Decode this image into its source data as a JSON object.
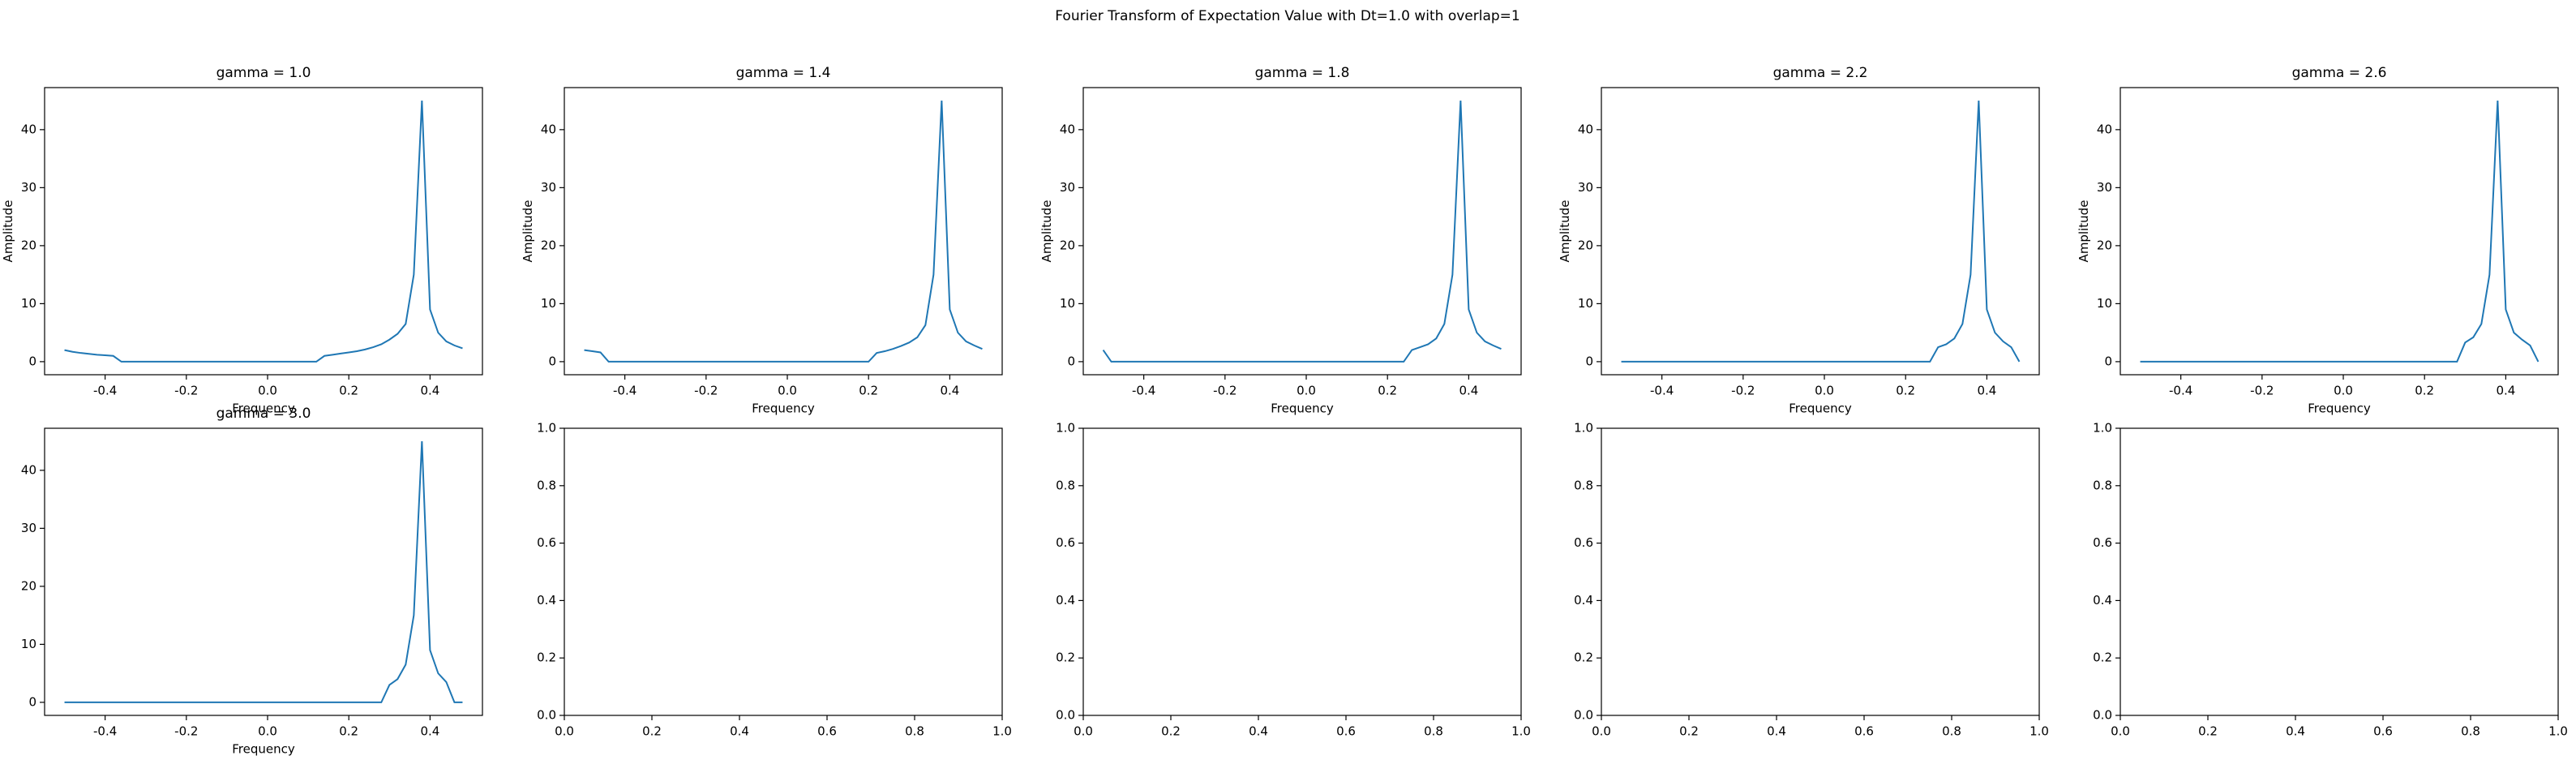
{
  "title": "Fourier Transform of Expectation Value with Dt=1.0 with overlap=1",
  "chart_data": [
    {
      "type": "line",
      "title": "gamma = 1.0",
      "xlabel": "Frequency",
      "ylabel": "Amplitude",
      "color": "#1f77b4",
      "x": [
        -0.5,
        -0.48,
        -0.46,
        -0.44,
        -0.42,
        -0.4,
        -0.38,
        -0.36,
        -0.34,
        -0.32,
        -0.3,
        -0.28,
        -0.26,
        -0.24,
        -0.22,
        -0.2,
        -0.18,
        -0.16,
        -0.14,
        -0.12,
        -0.1,
        -0.08,
        -0.06,
        -0.04,
        -0.02,
        0,
        0.02,
        0.04,
        0.06,
        0.08,
        0.1,
        0.12,
        0.14,
        0.16,
        0.18,
        0.2,
        0.22,
        0.24,
        0.26,
        0.28,
        0.3,
        0.32,
        0.34,
        0.36,
        0.38,
        0.4,
        0.42,
        0.44,
        0.46,
        0.48
      ],
      "values": [
        2.0,
        1.7,
        1.5,
        1.35,
        1.2,
        1.1,
        1.0,
        0,
        0,
        0,
        0,
        0,
        0,
        0,
        0,
        0,
        0,
        0,
        0,
        0,
        0,
        0,
        0,
        0,
        0,
        0,
        0,
        0,
        0,
        0,
        0,
        0,
        1.0,
        1.2,
        1.4,
        1.6,
        1.8,
        2.1,
        2.5,
        3.0,
        3.8,
        4.8,
        6.5,
        15,
        45,
        9,
        5,
        3.5,
        2.8,
        2.3
      ],
      "xlim": [
        -0.549,
        0.529
      ],
      "ylim": [
        -2.25,
        47.25
      ],
      "xticks": [
        -0.4,
        -0.2,
        {
          "value": 0,
          "label": "0.0"
        },
        0.2,
        0.4
      ],
      "yticks": [
        0,
        10,
        20,
        30,
        40
      ]
    },
    {
      "type": "line",
      "title": "gamma = 1.4",
      "xlabel": "Frequency",
      "ylabel": "Amplitude",
      "color": "#1f77b4",
      "x": [
        -0.5,
        -0.48,
        -0.46,
        -0.44,
        -0.42,
        -0.4,
        -0.38,
        -0.36,
        -0.34,
        -0.32,
        -0.3,
        -0.28,
        -0.26,
        -0.24,
        -0.22,
        -0.2,
        -0.18,
        -0.16,
        -0.14,
        -0.12,
        -0.1,
        -0.08,
        -0.06,
        -0.04,
        -0.02,
        0,
        0.02,
        0.04,
        0.06,
        0.08,
        0.1,
        0.12,
        0.14,
        0.16,
        0.18,
        0.2,
        0.22,
        0.24,
        0.26,
        0.28,
        0.3,
        0.32,
        0.34,
        0.36,
        0.38,
        0.4,
        0.42,
        0.44,
        0.46,
        0.48
      ],
      "values": [
        2.0,
        1.8,
        1.6,
        0,
        0,
        0,
        0,
        0,
        0,
        0,
        0,
        0,
        0,
        0,
        0,
        0,
        0,
        0,
        0,
        0,
        0,
        0,
        0,
        0,
        0,
        0,
        0,
        0,
        0,
        0,
        0,
        0,
        0,
        0,
        0,
        0,
        1.5,
        1.8,
        2.2,
        2.7,
        3.3,
        4.2,
        6.3,
        15,
        45,
        9,
        5,
        3.5,
        2.8,
        2.2
      ],
      "xlim": [
        -0.549,
        0.529
      ],
      "ylim": [
        -2.25,
        47.25
      ],
      "xticks": [
        -0.4,
        -0.2,
        {
          "value": 0,
          "label": "0.0"
        },
        0.2,
        0.4
      ],
      "yticks": [
        0,
        10,
        20,
        30,
        40
      ]
    },
    {
      "type": "line",
      "title": "gamma = 1.8",
      "xlabel": "Frequency",
      "ylabel": "Amplitude",
      "color": "#1f77b4",
      "x": [
        -0.5,
        -0.48,
        -0.46,
        -0.44,
        -0.42,
        -0.4,
        -0.38,
        -0.36,
        -0.34,
        -0.32,
        -0.3,
        -0.28,
        -0.26,
        -0.24,
        -0.22,
        -0.2,
        -0.18,
        -0.16,
        -0.14,
        -0.12,
        -0.1,
        -0.08,
        -0.06,
        -0.04,
        -0.02,
        0,
        0.02,
        0.04,
        0.06,
        0.08,
        0.1,
        0.12,
        0.14,
        0.16,
        0.18,
        0.2,
        0.22,
        0.24,
        0.26,
        0.28,
        0.3,
        0.32,
        0.34,
        0.36,
        0.38,
        0.4,
        0.42,
        0.44,
        0.46,
        0.48
      ],
      "values": [
        2.0,
        0,
        0,
        0,
        0,
        0,
        0,
        0,
        0,
        0,
        0,
        0,
        0,
        0,
        0,
        0,
        0,
        0,
        0,
        0,
        0,
        0,
        0,
        0,
        0,
        0,
        0,
        0,
        0,
        0,
        0,
        0,
        0,
        0,
        0,
        0,
        0,
        0,
        2.0,
        2.5,
        3.0,
        4.0,
        6.5,
        15,
        45,
        9,
        5,
        3.5,
        2.8,
        2.2
      ],
      "xlim": [
        -0.549,
        0.529
      ],
      "ylim": [
        -2.25,
        47.25
      ],
      "xticks": [
        -0.4,
        -0.2,
        {
          "value": 0,
          "label": "0.0"
        },
        0.2,
        0.4
      ],
      "yticks": [
        0,
        10,
        20,
        30,
        40
      ]
    },
    {
      "type": "line",
      "title": "gamma = 2.2",
      "xlabel": "Frequency",
      "ylabel": "Amplitude",
      "color": "#1f77b4",
      "x": [
        -0.5,
        -0.48,
        -0.46,
        -0.44,
        -0.42,
        -0.4,
        -0.38,
        -0.36,
        -0.34,
        -0.32,
        -0.3,
        -0.28,
        -0.26,
        -0.24,
        -0.22,
        -0.2,
        -0.18,
        -0.16,
        -0.14,
        -0.12,
        -0.1,
        -0.08,
        -0.06,
        -0.04,
        -0.02,
        0,
        0.02,
        0.04,
        0.06,
        0.08,
        0.1,
        0.12,
        0.14,
        0.16,
        0.18,
        0.2,
        0.22,
        0.24,
        0.26,
        0.28,
        0.3,
        0.32,
        0.34,
        0.36,
        0.38,
        0.4,
        0.42,
        0.44,
        0.46,
        0.48
      ],
      "values": [
        0,
        0,
        0,
        0,
        0,
        0,
        0,
        0,
        0,
        0,
        0,
        0,
        0,
        0,
        0,
        0,
        0,
        0,
        0,
        0,
        0,
        0,
        0,
        0,
        0,
        0,
        0,
        0,
        0,
        0,
        0,
        0,
        0,
        0,
        0,
        0,
        0,
        0,
        0,
        2.5,
        3.0,
        4.0,
        6.5,
        15,
        45,
        9,
        5,
        3.5,
        2.5,
        0
      ],
      "xlim": [
        -0.549,
        0.529
      ],
      "ylim": [
        -2.25,
        47.25
      ],
      "xticks": [
        -0.4,
        -0.2,
        {
          "value": 0,
          "label": "0.0"
        },
        0.2,
        0.4
      ],
      "yticks": [
        0,
        10,
        20,
        30,
        40
      ]
    },
    {
      "type": "line",
      "title": "gamma = 2.6",
      "xlabel": "Frequency",
      "ylabel": "Amplitude",
      "color": "#1f77b4",
      "x": [
        -0.5,
        -0.48,
        -0.46,
        -0.44,
        -0.42,
        -0.4,
        -0.38,
        -0.36,
        -0.34,
        -0.32,
        -0.3,
        -0.28,
        -0.26,
        -0.24,
        -0.22,
        -0.2,
        -0.18,
        -0.16,
        -0.14,
        -0.12,
        -0.1,
        -0.08,
        -0.06,
        -0.04,
        -0.02,
        0,
        0.02,
        0.04,
        0.06,
        0.08,
        0.1,
        0.12,
        0.14,
        0.16,
        0.18,
        0.2,
        0.22,
        0.24,
        0.26,
        0.28,
        0.3,
        0.32,
        0.34,
        0.36,
        0.38,
        0.4,
        0.42,
        0.44,
        0.46,
        0.48
      ],
      "values": [
        0,
        0,
        0,
        0,
        0,
        0,
        0,
        0,
        0,
        0,
        0,
        0,
        0,
        0,
        0,
        0,
        0,
        0,
        0,
        0,
        0,
        0,
        0,
        0,
        0,
        0,
        0,
        0,
        0,
        0,
        0,
        0,
        0,
        0,
        0,
        0,
        0,
        0,
        0,
        0,
        3.3,
        4.2,
        6.5,
        15,
        45,
        9,
        5,
        3.8,
        2.8,
        0
      ],
      "xlim": [
        -0.549,
        0.529
      ],
      "ylim": [
        -2.25,
        47.25
      ],
      "xticks": [
        -0.4,
        -0.2,
        {
          "value": 0,
          "label": "0.0"
        },
        0.2,
        0.4
      ],
      "yticks": [
        0,
        10,
        20,
        30,
        40
      ]
    },
    {
      "type": "line",
      "title": "gamma = 3.0",
      "xlabel": "Frequency",
      "color": "#1f77b4",
      "x": [
        -0.5,
        -0.48,
        -0.46,
        -0.44,
        -0.42,
        -0.4,
        -0.38,
        -0.36,
        -0.34,
        -0.32,
        -0.3,
        -0.28,
        -0.26,
        -0.24,
        -0.22,
        -0.2,
        -0.18,
        -0.16,
        -0.14,
        -0.12,
        -0.1,
        -0.08,
        -0.06,
        -0.04,
        -0.02,
        0,
        0.02,
        0.04,
        0.06,
        0.08,
        0.1,
        0.12,
        0.14,
        0.16,
        0.18,
        0.2,
        0.22,
        0.24,
        0.26,
        0.28,
        0.3,
        0.32,
        0.34,
        0.36,
        0.38,
        0.4,
        0.42,
        0.44,
        0.46,
        0.48
      ],
      "values": [
        0,
        0,
        0,
        0,
        0,
        0,
        0,
        0,
        0,
        0,
        0,
        0,
        0,
        0,
        0,
        0,
        0,
        0,
        0,
        0,
        0,
        0,
        0,
        0,
        0,
        0,
        0,
        0,
        0,
        0,
        0,
        0,
        0,
        0,
        0,
        0,
        0,
        0,
        0,
        0,
        3.0,
        4.0,
        6.5,
        15,
        45,
        9,
        5,
        3.5,
        0,
        0
      ],
      "xlim": [
        -0.549,
        0.529
      ],
      "ylim": [
        -2.25,
        47.25
      ],
      "xticks": [
        -0.4,
        -0.2,
        {
          "value": 0,
          "label": "0.0"
        },
        0.2,
        0.4
      ],
      "yticks": [
        0,
        10,
        20,
        30,
        40
      ]
    },
    {
      "type": "line",
      "xlim": [
        0,
        1
      ],
      "ylim": [
        0,
        1
      ],
      "xticks": [
        {
          "value": 0,
          "label": "0.0"
        },
        0.2,
        0.4,
        0.6,
        0.8,
        {
          "value": 1,
          "label": "1.0"
        }
      ],
      "yticks": [
        {
          "value": 0,
          "label": "0.0"
        },
        0.2,
        0.4,
        0.6,
        0.8,
        {
          "value": 1,
          "label": "1.0"
        }
      ]
    },
    {
      "type": "line",
      "xlim": [
        0,
        1
      ],
      "ylim": [
        0,
        1
      ],
      "xticks": [
        {
          "value": 0,
          "label": "0.0"
        },
        0.2,
        0.4,
        0.6,
        0.8,
        {
          "value": 1,
          "label": "1.0"
        }
      ],
      "yticks": [
        {
          "value": 0,
          "label": "0.0"
        },
        0.2,
        0.4,
        0.6,
        0.8,
        {
          "value": 1,
          "label": "1.0"
        }
      ]
    },
    {
      "type": "line",
      "xlim": [
        0,
        1
      ],
      "ylim": [
        0,
        1
      ],
      "xticks": [
        {
          "value": 0,
          "label": "0.0"
        },
        0.2,
        0.4,
        0.6,
        0.8,
        {
          "value": 1,
          "label": "1.0"
        }
      ],
      "yticks": [
        {
          "value": 0,
          "label": "0.0"
        },
        0.2,
        0.4,
        0.6,
        0.8,
        {
          "value": 1,
          "label": "1.0"
        }
      ]
    },
    {
      "type": "line",
      "xlim": [
        0,
        1
      ],
      "ylim": [
        0,
        1
      ],
      "xticks": [
        {
          "value": 0,
          "label": "0.0"
        },
        0.2,
        0.4,
        0.6,
        0.8,
        {
          "value": 1,
          "label": "1.0"
        }
      ],
      "yticks": [
        {
          "value": 0,
          "label": "0.0"
        },
        0.2,
        0.4,
        0.6,
        0.8,
        {
          "value": 1,
          "label": "1.0"
        }
      ]
    }
  ]
}
